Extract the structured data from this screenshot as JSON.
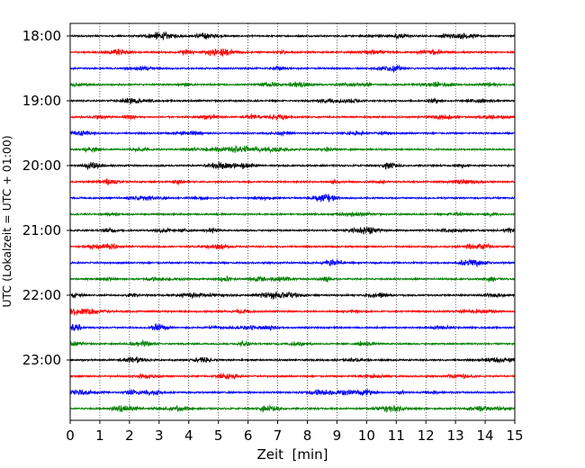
{
  "chart_data": {
    "type": "line",
    "title": "",
    "xlabel": "Zeit  [min]",
    "ylabel": "UTC (Lokalzeit = UTC + 01:00)",
    "xlim": [
      0,
      15
    ],
    "x_ticks": [
      "0",
      "1",
      "2",
      "3",
      "4",
      "5",
      "6",
      "7",
      "8",
      "9",
      "10",
      "11",
      "12",
      "13",
      "14",
      "15"
    ],
    "y_ticks": [
      "18:00",
      "19:00",
      "20:00",
      "21:00",
      "22:00",
      "23:00"
    ],
    "grid": "vertical dotted lines at each minute",
    "trace_count": 24,
    "trace_minutes": 15,
    "color_cycle": [
      "#000000",
      "#ff0000",
      "#0000ff",
      "#008000"
    ],
    "traces": [
      {
        "start": "18:00",
        "color": "#000000"
      },
      {
        "start": "18:15",
        "color": "#ff0000"
      },
      {
        "start": "18:30",
        "color": "#0000ff"
      },
      {
        "start": "18:45",
        "color": "#008000"
      },
      {
        "start": "19:00",
        "color": "#000000"
      },
      {
        "start": "19:15",
        "color": "#ff0000"
      },
      {
        "start": "19:30",
        "color": "#0000ff"
      },
      {
        "start": "19:45",
        "color": "#008000"
      },
      {
        "start": "20:00",
        "color": "#000000"
      },
      {
        "start": "20:15",
        "color": "#ff0000"
      },
      {
        "start": "20:30",
        "color": "#0000ff"
      },
      {
        "start": "20:45",
        "color": "#008000"
      },
      {
        "start": "21:00",
        "color": "#000000"
      },
      {
        "start": "21:15",
        "color": "#ff0000"
      },
      {
        "start": "21:30",
        "color": "#0000ff"
      },
      {
        "start": "21:45",
        "color": "#008000"
      },
      {
        "start": "22:00",
        "color": "#000000"
      },
      {
        "start": "22:15",
        "color": "#ff0000"
      },
      {
        "start": "22:30",
        "color": "#0000ff"
      },
      {
        "start": "22:45",
        "color": "#008000"
      },
      {
        "start": "23:00",
        "color": "#000000"
      },
      {
        "start": "23:15",
        "color": "#ff0000"
      },
      {
        "start": "23:30",
        "color": "#0000ff"
      },
      {
        "start": "23:45",
        "color": "#008000"
      }
    ]
  }
}
